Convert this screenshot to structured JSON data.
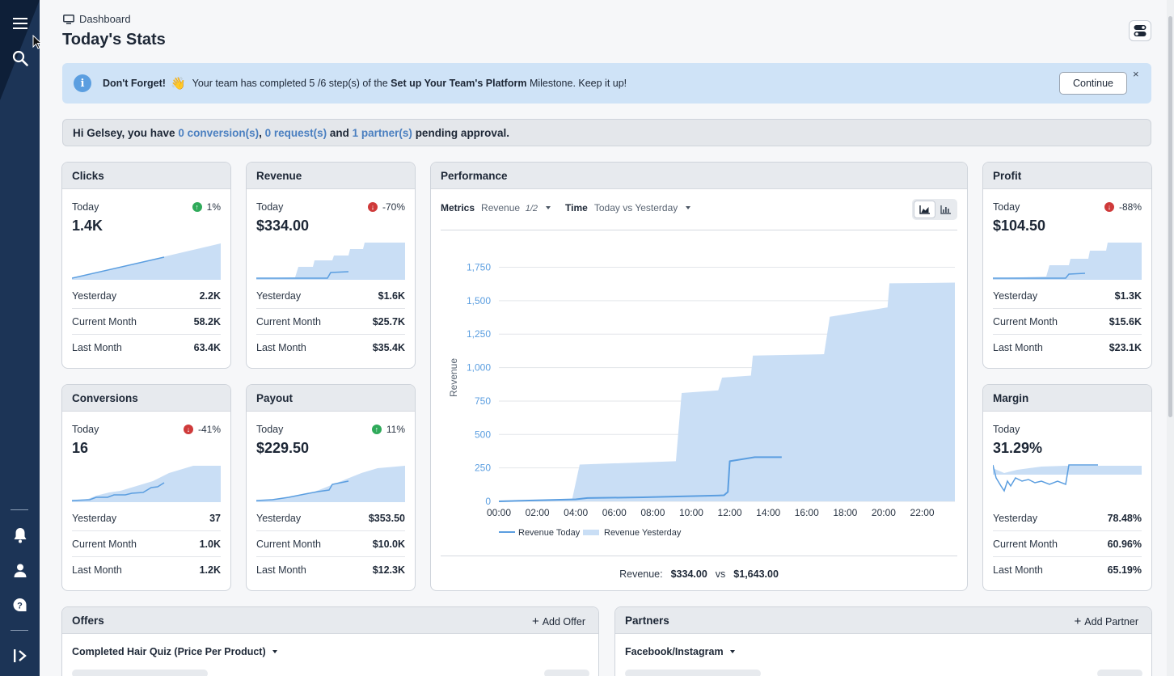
{
  "header": {
    "breadcrumb": "Dashboard",
    "title": "Today's Stats"
  },
  "banner": {
    "title": "Don't Forget!",
    "emoji": "👋",
    "text_before": "Your team has completed 5 /6 step(s) of the ",
    "milestone": "Set up Your Team's Platform",
    "text_after": " Milestone. Keep it up!",
    "button": "Continue",
    "close": "×"
  },
  "greeting": {
    "p1": "Hi Gelsey, you have ",
    "conversions": "0 conversion(s)",
    "p2": ", ",
    "requests": "0 request(s)",
    "p3": " and ",
    "partners": "1 partner(s)",
    "p4": " pending approval."
  },
  "stats": {
    "clicks": {
      "title": "Clicks",
      "today_label": "Today",
      "change": "1%",
      "direction": "up",
      "value": "1.4K",
      "rows": [
        {
          "label": "Yesterday",
          "value": "2.2K"
        },
        {
          "label": "Current Month",
          "value": "58.2K"
        },
        {
          "label": "Last Month",
          "value": "63.4K"
        }
      ]
    },
    "revenue": {
      "title": "Revenue",
      "today_label": "Today",
      "change": "-70%",
      "direction": "down",
      "value": "$334.00",
      "rows": [
        {
          "label": "Yesterday",
          "value": "$1.6K"
        },
        {
          "label": "Current Month",
          "value": "$25.7K"
        },
        {
          "label": "Last Month",
          "value": "$35.4K"
        }
      ]
    },
    "profit": {
      "title": "Profit",
      "today_label": "Today",
      "change": "-88%",
      "direction": "down",
      "value": "$104.50",
      "rows": [
        {
          "label": "Yesterday",
          "value": "$1.3K"
        },
        {
          "label": "Current Month",
          "value": "$15.6K"
        },
        {
          "label": "Last Month",
          "value": "$23.1K"
        }
      ]
    },
    "conversions": {
      "title": "Conversions",
      "today_label": "Today",
      "change": "-41%",
      "direction": "down",
      "value": "16",
      "rows": [
        {
          "label": "Yesterday",
          "value": "37"
        },
        {
          "label": "Current Month",
          "value": "1.0K"
        },
        {
          "label": "Last Month",
          "value": "1.2K"
        }
      ]
    },
    "payout": {
      "title": "Payout",
      "today_label": "Today",
      "change": "11%",
      "direction": "up",
      "value": "$229.50",
      "rows": [
        {
          "label": "Yesterday",
          "value": "$353.50"
        },
        {
          "label": "Current Month",
          "value": "$10.0K"
        },
        {
          "label": "Last Month",
          "value": "$12.3K"
        }
      ]
    },
    "margin": {
      "title": "Margin",
      "today_label": "Today",
      "value": "31.29%",
      "rows": [
        {
          "label": "Yesterday",
          "value": "78.48%"
        },
        {
          "label": "Current Month",
          "value": "60.96%"
        },
        {
          "label": "Last Month",
          "value": "65.19%"
        }
      ]
    }
  },
  "performance": {
    "title": "Performance",
    "metrics_label": "Metrics",
    "metrics_value": "Revenue",
    "metrics_count": "1/2",
    "time_label": "Time",
    "time_value": "Today vs Yesterday",
    "summary_label": "Revenue:",
    "summary_today": "$334.00",
    "summary_vs": "vs",
    "summary_yesterday": "$1,643.00"
  },
  "chart_data": {
    "type": "area",
    "ylabel": "Revenue",
    "ylim": [
      0,
      1850
    ],
    "yticks": [
      "0",
      "250",
      "500",
      "750",
      "1,000",
      "1,250",
      "1,500",
      "1,750"
    ],
    "xticks": [
      "00:00",
      "02:00",
      "04:00",
      "06:00",
      "08:00",
      "10:00",
      "12:00",
      "14:00",
      "16:00",
      "18:00",
      "20:00",
      "22:00"
    ],
    "series": [
      {
        "name": "Revenue Today",
        "kind": "line",
        "x": [
          0,
          4,
          4.6,
          7.5,
          11.7,
          11.9,
          12,
          13.3,
          14.7
        ],
        "y": [
          0,
          15,
          25,
          30,
          45,
          70,
          300,
          330,
          330
        ]
      },
      {
        "name": "Revenue Yesterday",
        "kind": "area",
        "x": [
          0,
          3.8,
          4.2,
          9.2,
          9.5,
          11.4,
          11.6,
          13.1,
          13.2,
          16.9,
          17.2,
          20.2,
          20.3,
          23.7
        ],
        "y": [
          0,
          10,
          275,
          300,
          810,
          830,
          925,
          940,
          1090,
          1100,
          1380,
          1450,
          1630,
          1635
        ]
      }
    ],
    "legend": "bottom-left"
  },
  "offers": {
    "title": "Offers",
    "add": "Add Offer",
    "selected": "Completed Hair Quiz (Price Per Product)"
  },
  "partners": {
    "title": "Partners",
    "add": "Add Partner",
    "selected": "Facebook/Instagram"
  },
  "colors": {
    "sidebar": "#1c3456",
    "line": "#5b9ee0",
    "area": "#c9def5",
    "link": "#4a7fc0"
  }
}
